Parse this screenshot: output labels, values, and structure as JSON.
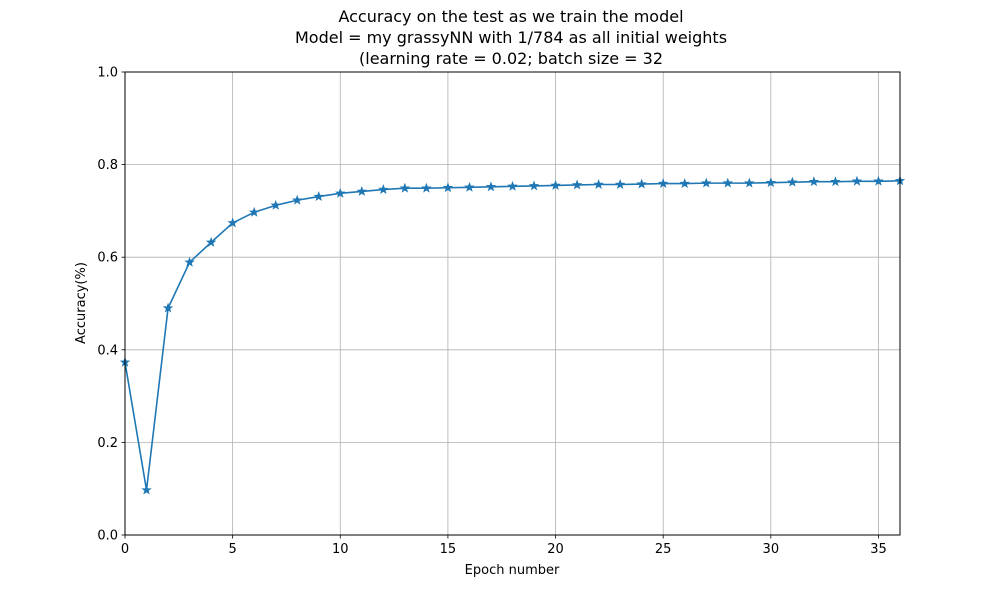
{
  "chart_data": {
    "type": "line",
    "title_lines": [
      "Accuracy on the test as we train the model",
      "Model = my grassyNN with 1/784 as all initial weights",
      "(learning rate = 0.02; batch size = 32"
    ],
    "xlabel": "Epoch number",
    "ylabel": "Accuracy(%)",
    "xlim": [
      0,
      36
    ],
    "ylim": [
      0,
      1.0
    ],
    "xticks": [
      0,
      5,
      10,
      15,
      20,
      25,
      30,
      35
    ],
    "xtick_labels": [
      "0",
      "5",
      "10",
      "15",
      "20",
      "25",
      "30",
      "35"
    ],
    "yticks": [
      0.0,
      0.2,
      0.4,
      0.6,
      0.8,
      1.0
    ],
    "ytick_labels": [
      "0.0",
      "0.2",
      "0.4",
      "0.6",
      "0.8",
      "1.0"
    ],
    "grid": true,
    "marker": "star",
    "color": "#1f77b4",
    "series": [
      {
        "x": [
          0,
          1,
          2,
          3,
          4,
          5,
          6,
          7,
          8,
          9,
          10,
          11,
          12,
          13,
          14,
          15,
          16,
          17,
          18,
          19,
          20,
          21,
          22,
          23,
          24,
          25,
          26,
          27,
          28,
          29,
          30,
          31,
          32,
          33,
          34,
          35,
          36
        ],
        "values": [
          0.373,
          0.097,
          0.49,
          0.589,
          0.632,
          0.674,
          0.697,
          0.712,
          0.723,
          0.731,
          0.738,
          0.742,
          0.746,
          0.749,
          0.749,
          0.75,
          0.751,
          0.752,
          0.753,
          0.754,
          0.755,
          0.756,
          0.757,
          0.757,
          0.758,
          0.759,
          0.759,
          0.76,
          0.76,
          0.76,
          0.761,
          0.762,
          0.763,
          0.763,
          0.764,
          0.764,
          0.765
        ]
      }
    ]
  }
}
